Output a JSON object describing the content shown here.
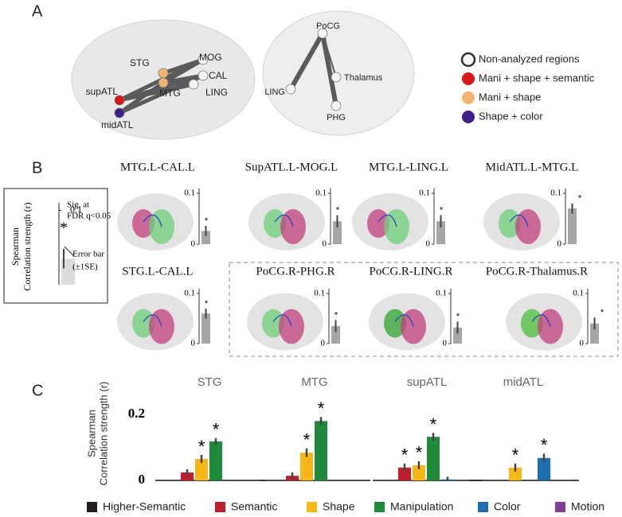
{
  "panel_labels": [
    "A",
    "B",
    "C"
  ],
  "panel_a": {
    "left_nodes": [
      {
        "label": "STG",
        "color": "#f2b46e"
      },
      {
        "label": "MTG",
        "color": "#f2b46e"
      },
      {
        "label": "supATL",
        "color": "#d7191c"
      },
      {
        "label": "midATL",
        "color": "#3f1f8c"
      },
      {
        "label": "MOG",
        "color": "#f4f4f4"
      },
      {
        "label": "CAL",
        "color": "#f4f4f4"
      },
      {
        "label": "LING",
        "color": "#f4f4f4"
      }
    ],
    "right_nodes": [
      {
        "label": "PoCG",
        "color": "#f4f4f4"
      },
      {
        "label": "Thalamus",
        "color": "#f4f4f4"
      },
      {
        "label": "LING",
        "color": "#f4f4f4"
      },
      {
        "label": "PHG",
        "color": "#f4f4f4"
      }
    ],
    "legend": [
      {
        "label": "Non-analyzed regions",
        "color": "#f4f4f4"
      },
      {
        "label": "Mani + shape + semantic",
        "color": "#d7191c"
      },
      {
        "label": "Mani + shape",
        "color": "#f2b46e"
      },
      {
        "label": "Shape + color",
        "color": "#3f1f8c"
      }
    ]
  },
  "chart_data": [
    {
      "type": "bar",
      "ylabel": [
        "Spearman",
        "Correlation strength (r)"
      ],
      "ylim": [
        0,
        0.11
      ],
      "yticks": [
        0.1
      ],
      "color": "#dcdcdc",
      "values": [
        0.035
      ],
      "errors": [
        0.013
      ],
      "annotations": [
        "Sig. at",
        "FDR q<0.05",
        "*",
        "Error bar",
        "(±1SE)"
      ]
    },
    {
      "type": "bar",
      "title": "MTG.L-CAL.L",
      "ylim": [
        0,
        0.11
      ],
      "yticks": [
        0,
        0.1
      ],
      "color": "#a6a6a6",
      "values": [
        0.026
      ],
      "errors": [
        0.01
      ],
      "stars": [
        "*"
      ]
    },
    {
      "type": "bar",
      "title": "SupATL.L-MOG.L",
      "ylim": [
        0,
        0.11
      ],
      "yticks": [
        0,
        0.1
      ],
      "color": "#a6a6a6",
      "values": [
        0.045
      ],
      "errors": [
        0.012
      ],
      "stars": [
        "*"
      ]
    },
    {
      "type": "bar",
      "title": "MTG.L-LING.L",
      "ylim": [
        0,
        0.11
      ],
      "yticks": [
        0,
        0.1
      ],
      "color": "#a6a6a6",
      "values": [
        0.045
      ],
      "errors": [
        0.012
      ],
      "stars": [
        "*"
      ]
    },
    {
      "type": "bar",
      "title": "MidATL.L-MTG.L",
      "ylim": [
        0,
        0.11
      ],
      "yticks": [
        0,
        0.1
      ],
      "color": "#a6a6a6",
      "values": [
        0.07
      ],
      "errors": [
        0.01
      ],
      "stars": [
        "*"
      ]
    },
    {
      "type": "bar",
      "title": "STG.L-CAL.L",
      "ylim": [
        0,
        0.11
      ],
      "yticks": [
        0,
        0.1
      ],
      "color": "#a6a6a6",
      "values": [
        0.06
      ],
      "errors": [
        0.01
      ],
      "stars": [
        "*"
      ]
    },
    {
      "type": "bar",
      "title": "PoCG.R-PHG.R",
      "ylim": [
        0,
        0.11
      ],
      "yticks": [
        0,
        0.1
      ],
      "color": "#a6a6a6",
      "values": [
        0.035
      ],
      "errors": [
        0.012
      ],
      "stars": [
        "*"
      ]
    },
    {
      "type": "bar",
      "title": "PoCG.R-LING.R",
      "ylim": [
        0,
        0.11
      ],
      "yticks": [
        0,
        0.1
      ],
      "color": "#a6a6a6",
      "values": [
        0.032
      ],
      "errors": [
        0.012
      ],
      "stars": [
        "*"
      ]
    },
    {
      "type": "bar",
      "title": "PoCG.R-Thalamus.R",
      "ylim": [
        0,
        0.11
      ],
      "yticks": [
        0,
        0.1
      ],
      "color": "#a6a6a6",
      "values": [
        0.04
      ],
      "errors": [
        0.012
      ],
      "stars": [
        "*"
      ]
    },
    {
      "type": "grouped-bar",
      "ylabel": [
        "Spearman",
        "Correlation strength (r)"
      ],
      "ylim": [
        0,
        0.2
      ],
      "yticks": [
        0,
        0.2
      ],
      "categories": [
        "STG",
        "MTG",
        "supATL",
        "midATL"
      ],
      "series": [
        {
          "name": "Higher-Semantic",
          "color": "#231f20",
          "values": [
            null,
            null,
            null,
            null
          ],
          "errors": [
            null,
            null,
            null,
            null
          ],
          "stars": [
            null,
            null,
            null,
            null
          ]
        },
        {
          "name": "Semantic",
          "color": "#be1e2d",
          "values": [
            0.024,
            0.014,
            0.039,
            null
          ],
          "errors": [
            0.01,
            0.01,
            0.012,
            null
          ],
          "stars": [
            null,
            null,
            "*",
            null
          ]
        },
        {
          "name": "Shape",
          "color": "#f7b718",
          "values": [
            0.065,
            0.084,
            0.046,
            0.039
          ],
          "errors": [
            0.012,
            0.013,
            0.012,
            0.012
          ],
          "stars": [
            "*",
            "*",
            "*",
            "*"
          ]
        },
        {
          "name": "Manipulation",
          "color": "#1f8a3c",
          "values": [
            0.118,
            0.18,
            0.132,
            null
          ],
          "errors": [
            0.01,
            0.012,
            0.012,
            null
          ],
          "stars": [
            "*",
            "*",
            "*",
            null
          ]
        },
        {
          "name": "Color",
          "color": "#1b6fae",
          "values": [
            null,
            null,
            0.003,
            0.068
          ],
          "errors": [
            null,
            null,
            0.008,
            0.013
          ],
          "stars": [
            null,
            null,
            null,
            "*"
          ]
        },
        {
          "name": "Motion",
          "color": "#7f3f98",
          "values": [
            null,
            null,
            null,
            null
          ],
          "errors": [
            null,
            null,
            null,
            null
          ],
          "stars": [
            null,
            null,
            null,
            null
          ]
        }
      ]
    }
  ]
}
